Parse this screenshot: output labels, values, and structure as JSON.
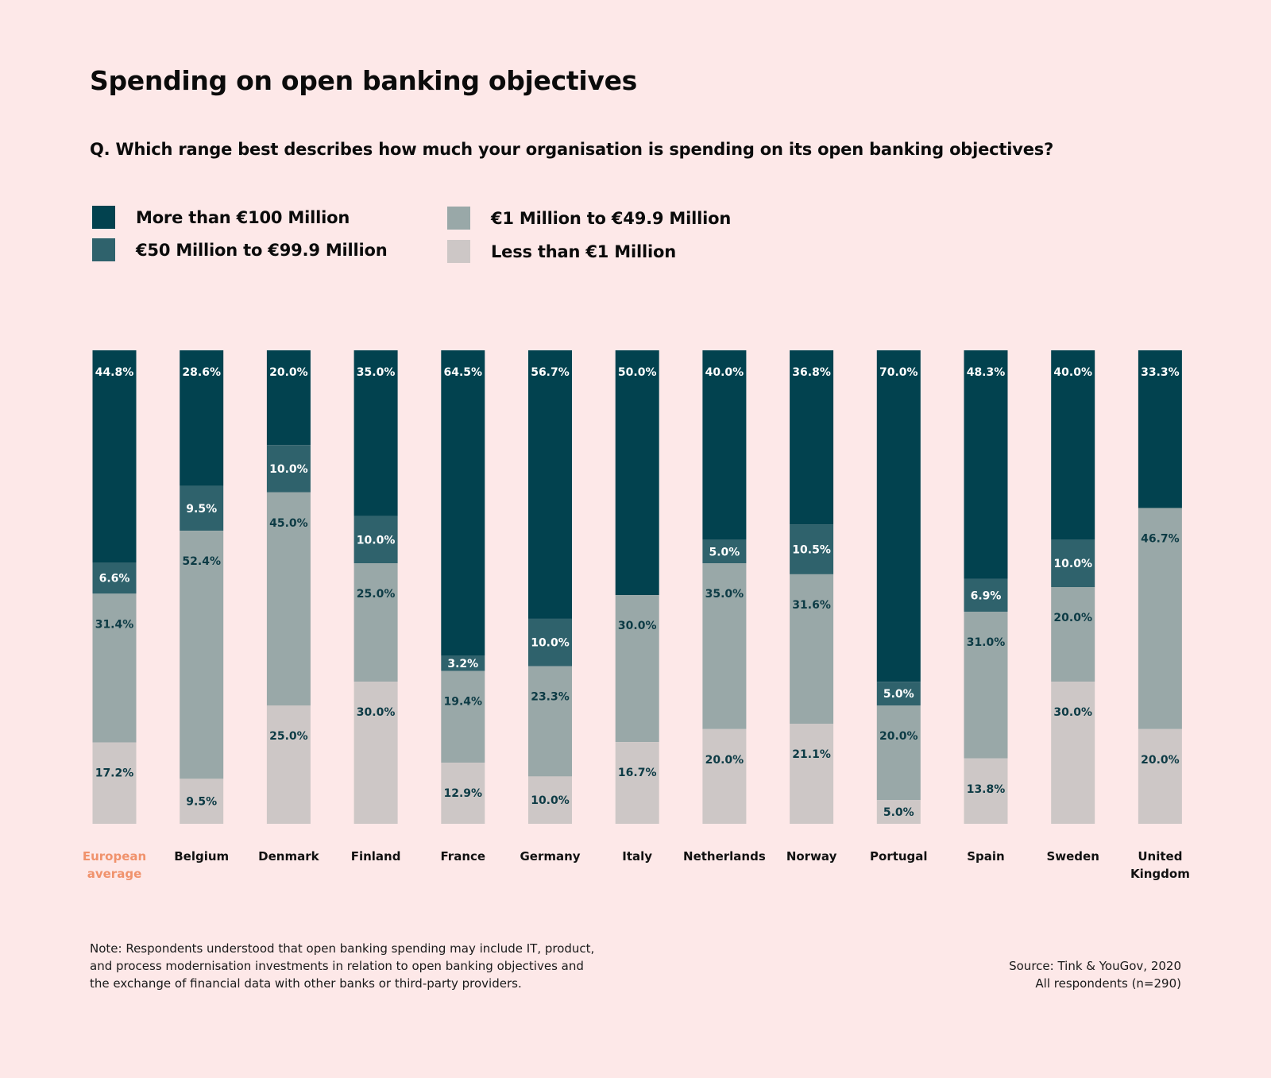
{
  "title": "Spending on open banking objectives",
  "question": "Q. Which range best describes how much your organisation is spending on its open banking objectives?",
  "colors": {
    "background": "#fde8e8",
    "more_than_100m": "#02424f",
    "m50_to_99_9": "#2f626c",
    "m1_to_49_9": "#99a8a8",
    "less_than_1m": "#cdc7c6",
    "highlight_label": "#f0926c"
  },
  "legend": [
    {
      "label": "More than €100 Million",
      "color": "#02424f"
    },
    {
      "label": "€50 Million to €99.9 Million",
      "color": "#2f626c"
    },
    {
      "label": "€1 Million to €49.9 Million",
      "color": "#99a8a8"
    },
    {
      "label": "Less than €1 Million",
      "color": "#cdc7c6"
    }
  ],
  "chart_data": {
    "type": "bar",
    "stacked": true,
    "value_unit": "%",
    "ylim": [
      0,
      100
    ],
    "grid": false,
    "legend_position": "top-left",
    "categories": [
      [
        "European",
        "average"
      ],
      [
        "Belgium"
      ],
      [
        "Denmark"
      ],
      [
        "Finland"
      ],
      [
        "France"
      ],
      [
        "Germany"
      ],
      [
        "Italy"
      ],
      [
        "Netherlands"
      ],
      [
        "Norway"
      ],
      [
        "Portugal"
      ],
      [
        "Spain"
      ],
      [
        "Sweden"
      ],
      [
        "United",
        "Kingdom"
      ]
    ],
    "highlight_category_index": 0,
    "series": [
      {
        "name": "More than €100 Million",
        "color": "#02424f",
        "label_color": "#ffffff",
        "values": [
          44.8,
          28.6,
          20.0,
          35.0,
          64.5,
          56.7,
          50.0,
          40.0,
          36.8,
          70.0,
          48.3,
          40.0,
          33.3
        ],
        "labels": [
          "44.8%",
          "28.6%",
          "20.0%",
          "35.0%",
          "64.5%",
          "56.7%",
          "50.0%",
          "40.0%",
          "36.8%",
          "70.0%",
          "48.3%",
          "40.0%",
          "33.3%"
        ]
      },
      {
        "name": "€50 Million to €99.9 Million",
        "color": "#2f626c",
        "label_color": "#ffffff",
        "values": [
          6.6,
          9.5,
          10.0,
          10.0,
          3.2,
          10.0,
          0,
          5.0,
          10.5,
          5.0,
          6.9,
          10.0,
          0
        ],
        "labels": [
          "6.6%",
          "9.5%",
          "10.0%",
          "10.0%",
          "3.2%",
          "10.0%",
          "",
          "5.0%",
          "10.5%",
          "5.0%",
          "6.9%",
          "10.0%",
          ""
        ]
      },
      {
        "name": "€1 Million to €49.9 Million",
        "color": "#99a8a8",
        "label_color": "#0d3b45",
        "values": [
          31.4,
          52.4,
          45.0,
          25.0,
          19.4,
          23.3,
          30.0,
          35.0,
          31.6,
          20.0,
          31.0,
          20.0,
          46.7
        ],
        "labels": [
          "31.4%",
          "52.4%",
          "45.0%",
          "25.0%",
          "19.4%",
          "23.3%",
          "30.0%",
          "35.0%",
          "31.6%",
          "20.0%",
          "31.0%",
          "20.0%",
          "46.7%"
        ]
      },
      {
        "name": "Less than €1 Million",
        "color": "#cdc7c6",
        "label_color": "#0d3b45",
        "values": [
          17.2,
          9.5,
          25.0,
          30.0,
          12.9,
          10.0,
          16.7,
          20.0,
          21.1,
          5.0,
          13.8,
          30.0,
          20.0
        ],
        "labels": [
          "17.2%",
          "9.5%",
          "25.0%",
          "30.0%",
          "12.9%",
          "10.0%",
          "16.7%",
          "20.0%",
          "21.1%",
          "5.0%",
          "13.8%",
          "30.0%",
          "20.0%"
        ]
      }
    ]
  },
  "note": "Note: Respondents understood that open banking spending may include IT, product, and process modernisation investments in relation to open banking objectives and the exchange of financial data with other banks or third-party providers.",
  "source": {
    "line1": "Source: Tink & YouGov, 2020",
    "line2": "All respondents (n=290)"
  }
}
